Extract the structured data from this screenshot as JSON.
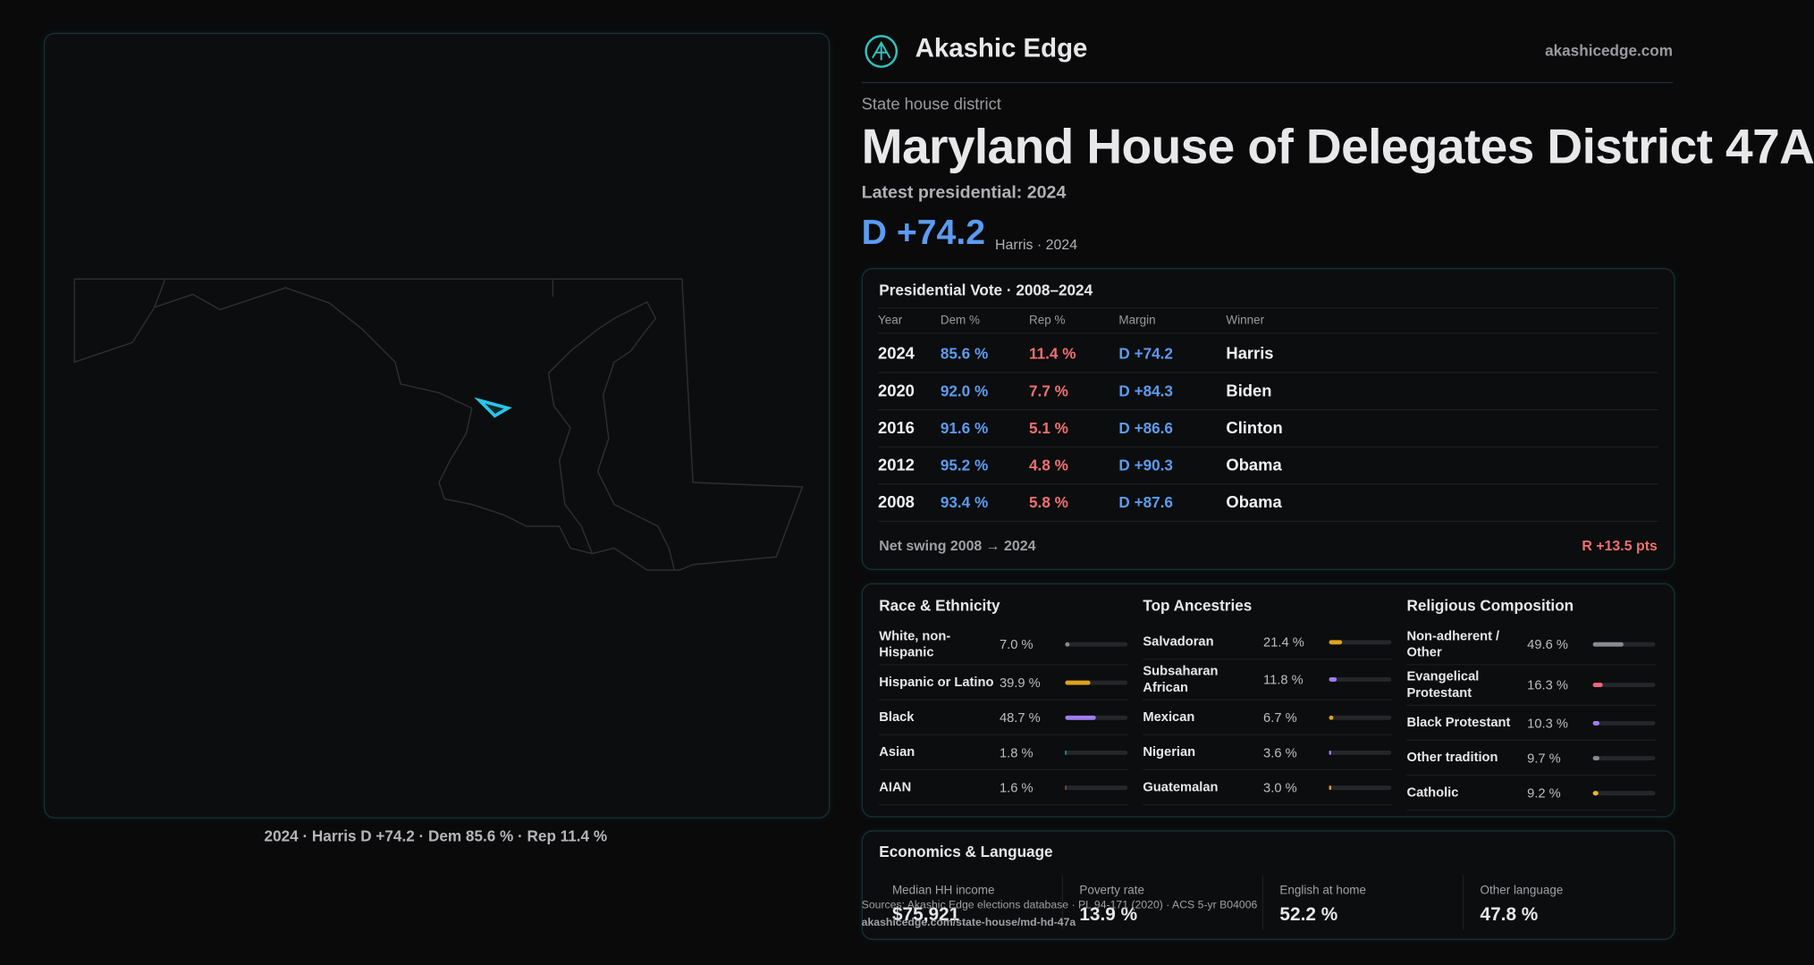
{
  "brand": {
    "name": "Akashic Edge",
    "url": "akashicedge.com"
  },
  "header": {
    "kicker": "State house district",
    "title": "Maryland House of Delegates District 47A",
    "latest": "Latest presidential: 2024",
    "margin": "D +74.2",
    "margin_note": "Harris · 2024"
  },
  "map": {
    "caption": "2024 · Harris D +74.2 · Dem 85.6 % · Rep 11.4 %"
  },
  "presidential": {
    "title": "Presidential Vote · 2008–2024",
    "columns": [
      "Year",
      "Dem %",
      "Rep %",
      "Margin",
      "Winner"
    ],
    "rows": [
      [
        "2024",
        "85.6 %",
        "11.4 %",
        "D +74.2",
        "Harris"
      ],
      [
        "2020",
        "92.0 %",
        "7.7 %",
        "D +84.3",
        "Biden"
      ],
      [
        "2016",
        "91.6 %",
        "5.1 %",
        "D +86.6",
        "Clinton"
      ],
      [
        "2012",
        "95.2 %",
        "4.8 %",
        "D +90.3",
        "Obama"
      ],
      [
        "2008",
        "93.4 %",
        "5.8 %",
        "D +87.6",
        "Obama"
      ]
    ],
    "swing_label": "Net swing 2008 → 2024",
    "swing_value": "R +13.5 pts"
  },
  "demographics": [
    {
      "title": "Race & Ethnicity",
      "rows": [
        {
          "label": "White, non-Hispanic",
          "value": 7.0,
          "value_label": "7.0 %",
          "color": "#8a8a92"
        },
        {
          "label": "Hispanic or Latino",
          "value": 39.9,
          "value_label": "39.9 %",
          "color": "#e0a21f"
        },
        {
          "label": "Black",
          "value": 48.7,
          "value_label": "48.7 %",
          "color": "#a07ef0"
        },
        {
          "label": "Asian",
          "value": 1.8,
          "value_label": "1.8 %",
          "color": "#2fc4c0"
        },
        {
          "label": "AIAN",
          "value": 1.6,
          "value_label": "1.6 %",
          "color": "#c0563a"
        }
      ]
    },
    {
      "title": "Top Ancestries",
      "rows": [
        {
          "label": "Salvadoran",
          "value": 21.4,
          "value_label": "21.4 %",
          "color": "#e0a21f"
        },
        {
          "label": "Subsaharan African",
          "value": 11.8,
          "value_label": "11.8 %",
          "color": "#a07ef0"
        },
        {
          "label": "Mexican",
          "value": 6.7,
          "value_label": "6.7 %",
          "color": "#e0a21f"
        },
        {
          "label": "Nigerian",
          "value": 3.6,
          "value_label": "3.6 %",
          "color": "#a07ef0"
        },
        {
          "label": "Guatemalan",
          "value": 3.0,
          "value_label": "3.0 %",
          "color": "#e0a21f"
        }
      ]
    },
    {
      "title": "Religious Composition",
      "rows": [
        {
          "label": "Non-adherent / Other",
          "value": 49.6,
          "value_label": "49.6 %",
          "color": "#8a8a92"
        },
        {
          "label": "Evangelical Protestant",
          "value": 16.3,
          "value_label": "16.3 %",
          "color": "#f0667a"
        },
        {
          "label": "Black Protestant",
          "value": 10.3,
          "value_label": "10.3 %",
          "color": "#a07ef0"
        },
        {
          "label": "Other tradition",
          "value": 9.7,
          "value_label": "9.7 %",
          "color": "#8a8a92"
        },
        {
          "label": "Catholic",
          "value": 9.2,
          "value_label": "9.2 %",
          "color": "#e8b62a"
        }
      ]
    }
  ],
  "economics": {
    "title": "Economics & Language",
    "items": [
      {
        "label": "Median HH income",
        "value": "$75,921"
      },
      {
        "label": "Poverty rate",
        "value": "13.9 %"
      },
      {
        "label": "English at home",
        "value": "52.2 %"
      },
      {
        "label": "Other language",
        "value": "47.8 %"
      }
    ]
  },
  "footer": {
    "sources": "Sources: Akashic Edge elections database · PL 94-171 (2020) · ACS 5-yr B04006",
    "url": "akashicedge.com/state-house/md-hd-47a"
  }
}
